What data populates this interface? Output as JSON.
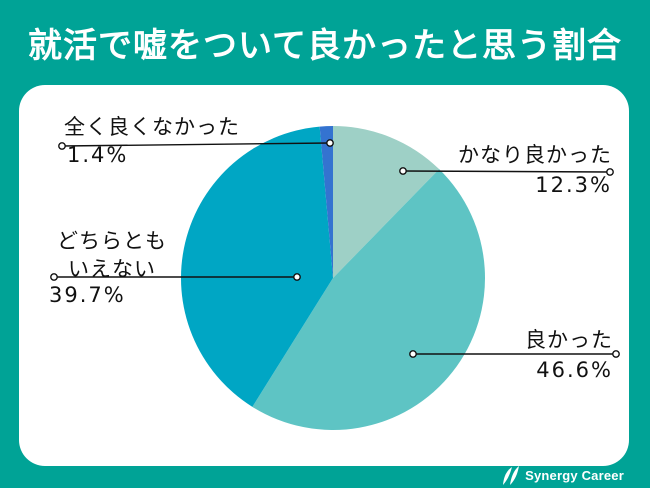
{
  "header": {
    "title": "就活で嘘をついて良かったと思う割合"
  },
  "chart_data": {
    "type": "pie",
    "title": "就活で嘘をついて良かったと思う割合",
    "unit": "%",
    "total": 100,
    "start_angle_deg": 0,
    "direction": "clockwise",
    "legend_position": "none",
    "slices": [
      {
        "id": "kanari-yokatta",
        "label": "かなり良かった",
        "value": 12.3,
        "color": "#9ed0c6"
      },
      {
        "id": "yokatta",
        "label": "良かった",
        "value": 46.6,
        "color": "#5ec4c4"
      },
      {
        "id": "dochiratomo-ienai",
        "label": "どちらともいえない",
        "value": 39.7,
        "color": "#00a6c4"
      },
      {
        "id": "mattaku-yokunakatta",
        "label": "全く良くなかった",
        "value": 1.4,
        "color": "#3473d0"
      }
    ]
  },
  "callouts": {
    "mattaku": {
      "line1": "全く良くなかった",
      "pct": "1.4%"
    },
    "kanari": {
      "line1": "かなり良かった",
      "pct": "12.3%"
    },
    "dochira": {
      "line1": "どちらとも",
      "line2": "いえない",
      "pct": "39.7%"
    },
    "yokatta": {
      "line1": "良かった",
      "pct": "46.6%"
    }
  },
  "footer": {
    "brand": "Synergy Career"
  },
  "colors": {
    "background": "#00a396",
    "card": "#ffffff",
    "title_text": "#ffffff",
    "label_text": "#111111",
    "leader_line": "#111111"
  }
}
